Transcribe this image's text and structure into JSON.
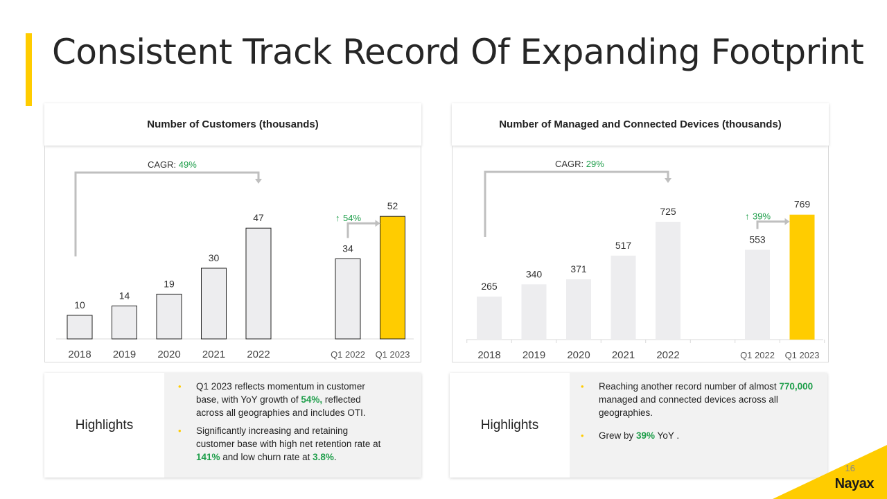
{
  "title": "Consistent Track Record Of Expanding Footprint",
  "colors": {
    "accent": "#FFCC00",
    "bar": "#EDEDEF",
    "green": "#1E9E4A",
    "arrow": "#BFBFBF"
  },
  "chart_data": [
    {
      "type": "bar",
      "title": "Number of Customers (thousands)",
      "categories": [
        "2018",
        "2019",
        "2020",
        "2021",
        "2022",
        "",
        "Q1 2022",
        "Q1 2023"
      ],
      "values": [
        10,
        14,
        19,
        30,
        47,
        null,
        34,
        52
      ],
      "value_labels": [
        "10",
        "14",
        "19",
        "30",
        "47",
        "",
        "34",
        "52"
      ],
      "highlight_index": 7,
      "cagr_label": "CAGR: ",
      "cagr_value": "49%",
      "growth_label": "54%",
      "ylim": [
        0,
        60
      ]
    },
    {
      "type": "bar",
      "title": "Number of Managed and Connected Devices (thousands)",
      "categories": [
        "2018",
        "2019",
        "2020",
        "2021",
        "2022",
        "",
        "Q1 2022",
        "Q1 2023"
      ],
      "values": [
        265,
        340,
        371,
        517,
        725,
        null,
        553,
        769
      ],
      "value_labels": [
        "265",
        "340",
        "371",
        "517",
        "725",
        "",
        "553",
        "769"
      ],
      "highlight_index": 7,
      "cagr_label": "CAGR: ",
      "cagr_value": "29%",
      "growth_label": "39%",
      "ylim": [
        0,
        900
      ]
    }
  ],
  "highlights": [
    {
      "label": "Highlights",
      "bullets": [
        [
          {
            "t": "Q1 2023 reflects momentum  in customer base, with YoY growth of "
          },
          {
            "t": "54%,",
            "g": true
          },
          {
            "t": " reflected across all geographies and includes OTI."
          }
        ],
        [
          {
            "t": "Significantly increasing and retaining customer base with high net retention rate at "
          },
          {
            "t": "141%",
            "g": true
          },
          {
            "t": " and low churn rate at "
          },
          {
            "t": "3.8%",
            "g": true
          },
          {
            "t": "."
          }
        ]
      ]
    },
    {
      "label": "Highlights",
      "bullets": [
        [
          {
            "t": "Reaching another record number of almost "
          },
          {
            "t": "770,000",
            "g": true
          },
          {
            "t": " managed and connected devices across all geographies."
          }
        ],
        [
          {
            "t": "Grew by "
          },
          {
            "t": "39%",
            "g": true
          },
          {
            "t": " YoY ."
          }
        ]
      ]
    }
  ],
  "page_number": "16",
  "logo": "Nayax"
}
